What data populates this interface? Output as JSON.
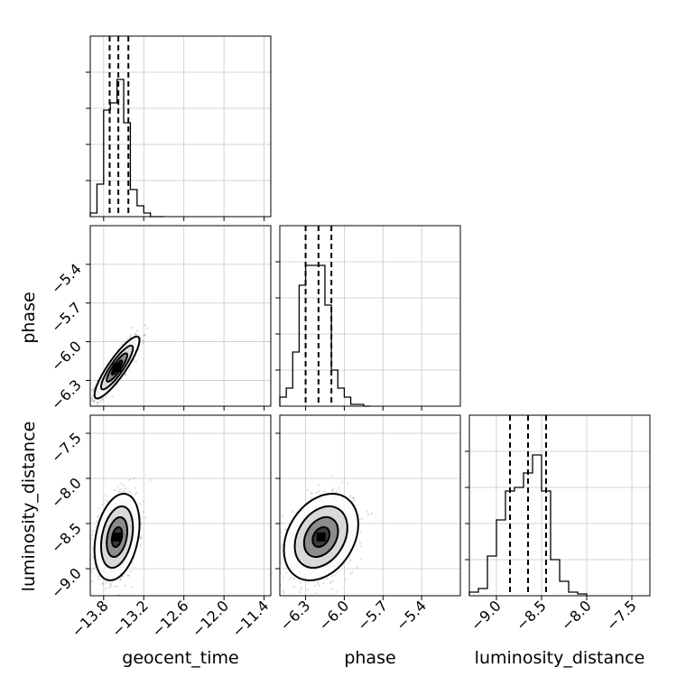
{
  "chart_data": {
    "type": "corner",
    "variables": [
      "geocent_time",
      "phase",
      "luminosity_distance"
    ],
    "ranges": {
      "geocent_time": [
        -14.0,
        -11.3
      ],
      "phase": [
        -6.5,
        -5.1
      ],
      "luminosity_distance": [
        -9.3,
        -7.3
      ]
    },
    "ticks": {
      "geocent_time": {
        "values": [
          -13.8,
          -13.2,
          -12.6,
          -12.0,
          -11.4
        ],
        "labels": [
          "−13.8",
          "−13.2",
          "−12.6",
          "−12.0",
          "−11.4"
        ]
      },
      "phase": {
        "values": [
          -6.3,
          -6.0,
          -5.7,
          -5.4
        ],
        "labels": [
          "−6.3",
          "−6.0",
          "−5.7",
          "−5.4"
        ]
      },
      "luminosity_distance": {
        "values": [
          -9.0,
          -8.5,
          -8.0,
          -7.5
        ],
        "labels": [
          "−9.0",
          "−8.5",
          "−8.0",
          "−7.5"
        ]
      }
    },
    "histograms": {
      "geocent_time": {
        "edges": [
          -14.0,
          -13.9,
          -13.8,
          -13.7,
          -13.6,
          -13.5,
          -13.4,
          -13.3,
          -13.2,
          -13.1,
          -13.0,
          -12.9
        ],
        "counts": [
          0.02,
          0.18,
          0.59,
          0.63,
          0.76,
          0.52,
          0.15,
          0.06,
          0.02,
          0.0,
          0.0
        ],
        "quantiles": [
          -13.71,
          -13.58,
          -13.43
        ]
      },
      "phase": {
        "edges": [
          -6.5,
          -6.45,
          -6.4,
          -6.35,
          -6.3,
          -6.25,
          -6.2,
          -6.15,
          -6.1,
          -6.05,
          -6.0,
          -5.95,
          -5.9,
          -5.85,
          -5.8
        ],
        "counts": [
          0.05,
          0.1,
          0.3,
          0.67,
          0.78,
          0.78,
          0.78,
          0.56,
          0.2,
          0.1,
          0.05,
          0.01,
          0.01,
          0.0
        ],
        "quantiles": [
          -6.3,
          -6.2,
          -6.1
        ]
      },
      "luminosity_distance": {
        "edges": [
          -9.3,
          -9.2,
          -9.1,
          -9.0,
          -8.9,
          -8.8,
          -8.7,
          -8.6,
          -8.5,
          -8.4,
          -8.3,
          -8.2,
          -8.1,
          -8.0
        ],
        "counts": [
          0.02,
          0.04,
          0.22,
          0.42,
          0.58,
          0.6,
          0.68,
          0.78,
          0.58,
          0.2,
          0.08,
          0.02,
          0.01
        ],
        "quantiles": [
          -8.85,
          -8.65,
          -8.45
        ]
      }
    },
    "joint": [
      {
        "x": "geocent_time",
        "y": "phase",
        "center": [
          -13.6,
          -6.2
        ],
        "spread": [
          0.14,
          0.1
        ],
        "correlation": 0.88
      },
      {
        "x": "geocent_time",
        "y": "luminosity_distance",
        "center": [
          -13.6,
          -8.65
        ],
        "spread": [
          0.14,
          0.2
        ],
        "correlation": 0.3
      },
      {
        "x": "phase",
        "y": "luminosity_distance",
        "center": [
          -6.18,
          -8.65
        ],
        "spread": [
          0.12,
          0.2
        ],
        "correlation": 0.3
      }
    ],
    "grid": true
  }
}
